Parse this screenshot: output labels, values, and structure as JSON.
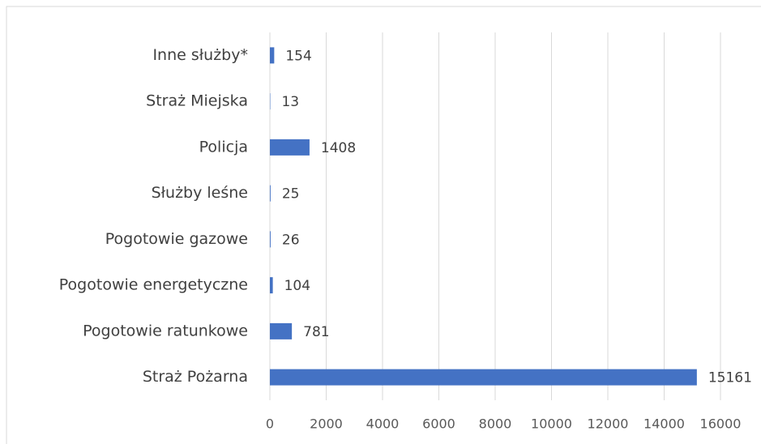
{
  "chart_data": {
    "type": "bar",
    "orientation": "horizontal",
    "categories": [
      "Inne służby*",
      "Straż Miejska",
      "Policja",
      "Służby leśne",
      "Pogotowie gazowe",
      "Pogotowie energetyczne",
      "Pogotowie ratunkowe",
      "Straż Pożarna"
    ],
    "values": [
      154,
      13,
      1408,
      25,
      26,
      104,
      781,
      15161
    ],
    "color": "#4472c4",
    "xlim": [
      0,
      16000
    ],
    "xticks": [
      0,
      2000,
      4000,
      6000,
      8000,
      10000,
      12000,
      14000,
      16000
    ],
    "grid": true
  }
}
